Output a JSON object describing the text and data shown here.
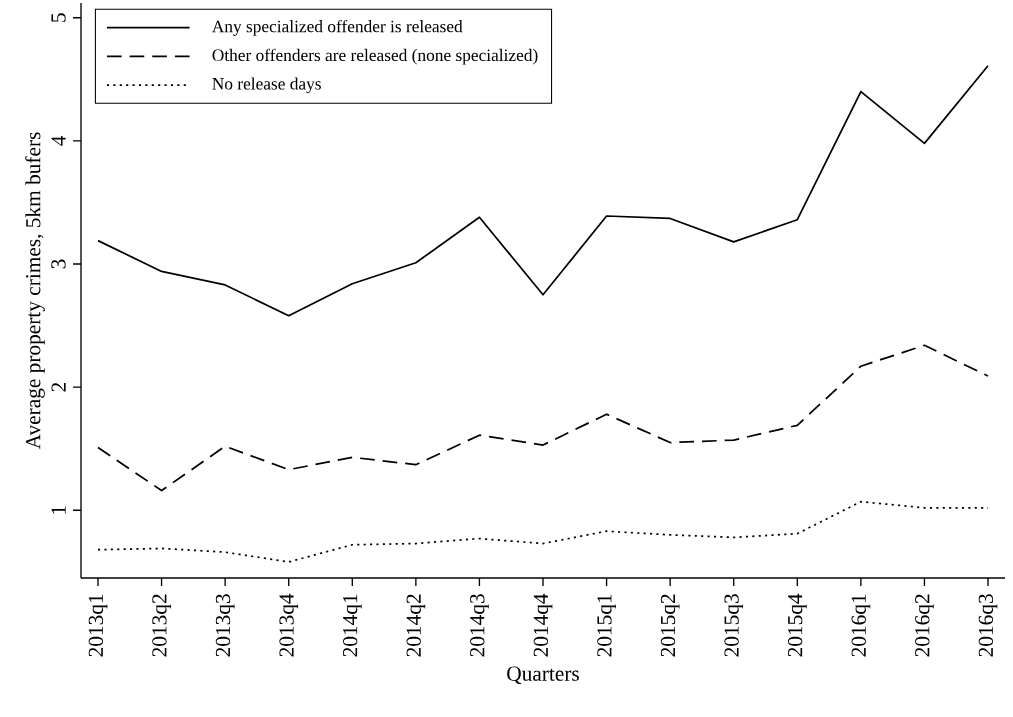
{
  "chart_data": {
    "type": "line",
    "xlabel": "Quarters",
    "ylabel": "Average property crimes, 5km bufers",
    "categories": [
      "2013q1",
      "2013q2",
      "2013q3",
      "2013q4",
      "2014q1",
      "2014q2",
      "2014q3",
      "2014q4",
      "2015q1",
      "2015q2",
      "2015q3",
      "2015q4",
      "2016q1",
      "2016q2",
      "2016q3"
    ],
    "series": [
      {
        "name": "Any specialized offender is released",
        "color": "#000000",
        "line_style": "solid",
        "values": [
          3.19,
          2.94,
          2.83,
          2.58,
          2.84,
          3.01,
          3.38,
          2.75,
          3.39,
          3.37,
          3.18,
          3.36,
          4.4,
          3.98,
          4.61
        ]
      },
      {
        "name": "Other offenders are released (none specialized)",
        "color": "#000000",
        "line_style": "dashed",
        "values": [
          1.51,
          1.16,
          1.52,
          1.33,
          1.43,
          1.37,
          1.61,
          1.53,
          1.78,
          1.55,
          1.57,
          1.69,
          2.17,
          2.34,
          2.09
        ]
      },
      {
        "name": "No release days",
        "color": "#000000",
        "line_style": "dotted",
        "values": [
          0.68,
          0.69,
          0.66,
          0.58,
          0.72,
          0.73,
          0.77,
          0.73,
          0.83,
          0.8,
          0.78,
          0.81,
          1.07,
          1.02,
          1.02
        ]
      }
    ],
    "ylim": [
      0.45,
      5.12
    ],
    "yticks": [
      1,
      2,
      3,
      4,
      5
    ],
    "legend": "top left"
  }
}
